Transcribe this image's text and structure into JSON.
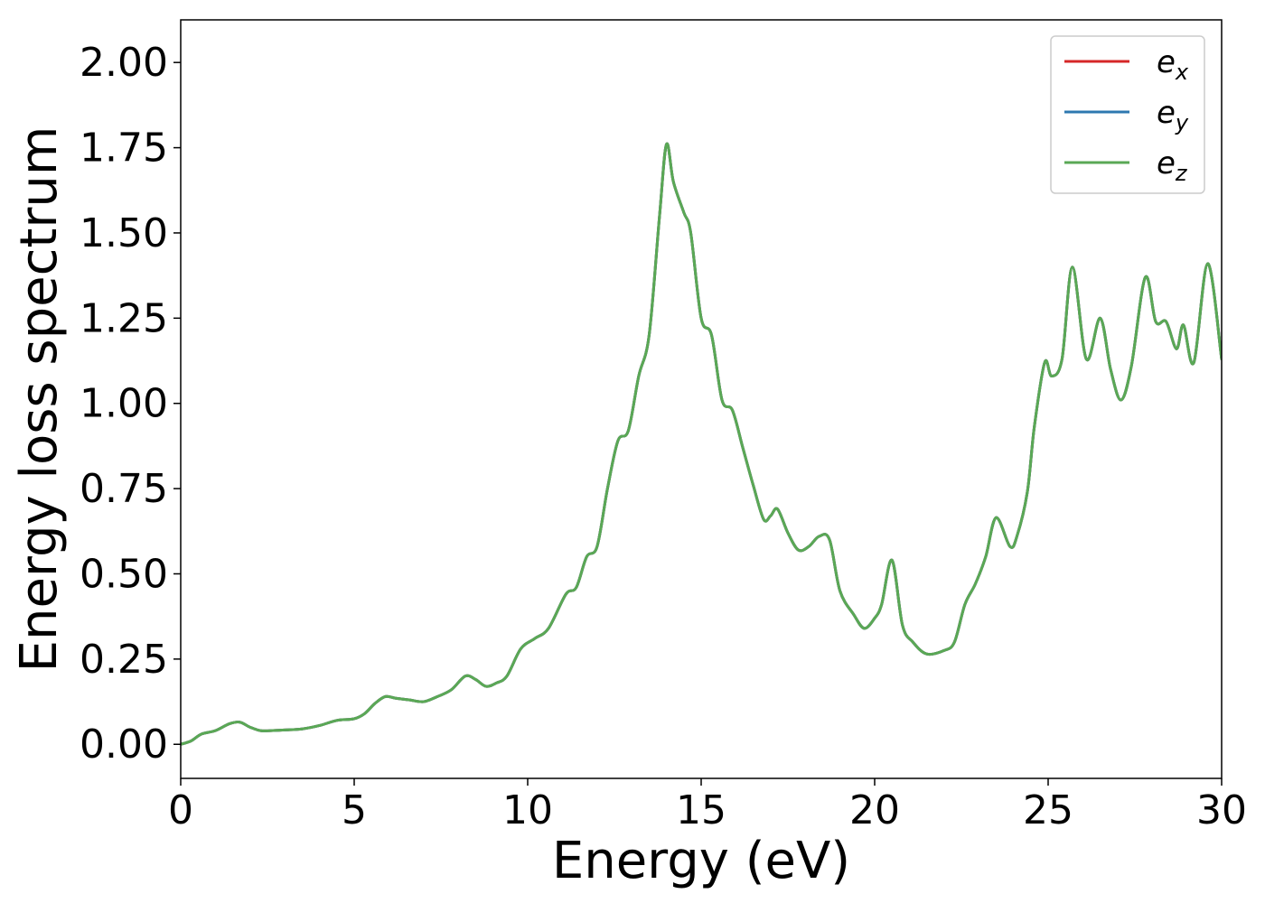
{
  "chart_data": {
    "type": "line",
    "title": "",
    "xlabel": "Energy (eV)",
    "ylabel": "Energy loss spectrum",
    "xlim": [
      0,
      30
    ],
    "ylim": [
      -0.1,
      2.125
    ],
    "xticks": [
      0,
      5,
      10,
      15,
      20,
      25,
      30
    ],
    "xtick_labels": [
      "0",
      "5",
      "10",
      "15",
      "20",
      "25",
      "30"
    ],
    "yticks": [
      0,
      0.25,
      0.5,
      0.75,
      1.0,
      1.25,
      1.5,
      1.75,
      2.0
    ],
    "ytick_labels": [
      "0.00",
      "0.25",
      "0.50",
      "0.75",
      "1.00",
      "1.25",
      "1.50",
      "1.75",
      "2.00"
    ],
    "grid": false,
    "legend_position": "top-right",
    "series": [
      {
        "name": "e_x",
        "label_base": "e",
        "label_sub": "x",
        "color": "#d62728",
        "x": [
          0,
          0.3,
          0.6,
          1.0,
          1.4,
          1.7,
          2.0,
          2.3,
          2.6,
          3.0,
          3.5,
          4.0,
          4.5,
          5.0,
          5.3,
          5.6,
          5.9,
          6.2,
          6.6,
          7.0,
          7.4,
          7.8,
          8.2,
          8.5,
          8.8,
          9.1,
          9.4,
          9.8,
          10.2,
          10.6,
          11.1,
          11.4,
          11.7,
          12.0,
          12.3,
          12.6,
          12.9,
          13.2,
          13.5,
          13.8,
          14.0,
          14.2,
          14.5,
          14.7,
          15.0,
          15.3,
          15.6,
          15.9,
          16.2,
          16.5,
          16.8,
          17.0,
          17.2,
          17.5,
          17.8,
          18.1,
          18.4,
          18.7,
          19.0,
          19.4,
          19.7,
          20.0,
          20.2,
          20.5,
          20.8,
          21.1,
          21.5,
          22.0,
          22.3,
          22.6,
          22.9,
          23.2,
          23.5,
          23.9,
          24.1,
          24.4,
          24.6,
          24.9,
          25.1,
          25.4,
          25.7,
          26.1,
          26.5,
          26.8,
          27.1,
          27.4,
          27.8,
          28.1,
          28.4,
          28.7,
          28.9,
          29.2,
          29.6,
          30.0
        ],
        "y": [
          0.0,
          0.01,
          0.03,
          0.04,
          0.06,
          0.065,
          0.05,
          0.04,
          0.04,
          0.042,
          0.045,
          0.055,
          0.07,
          0.075,
          0.09,
          0.12,
          0.14,
          0.135,
          0.13,
          0.125,
          0.14,
          0.16,
          0.2,
          0.19,
          0.17,
          0.18,
          0.2,
          0.28,
          0.31,
          0.34,
          0.44,
          0.46,
          0.55,
          0.58,
          0.75,
          0.89,
          0.92,
          1.08,
          1.2,
          1.55,
          1.76,
          1.65,
          1.56,
          1.5,
          1.25,
          1.2,
          1.01,
          0.98,
          0.87,
          0.76,
          0.66,
          0.67,
          0.69,
          0.62,
          0.57,
          0.58,
          0.61,
          0.6,
          0.45,
          0.38,
          0.34,
          0.37,
          0.41,
          0.54,
          0.35,
          0.3,
          0.265,
          0.275,
          0.3,
          0.41,
          0.47,
          0.55,
          0.665,
          0.58,
          0.61,
          0.74,
          0.93,
          1.12,
          1.08,
          1.13,
          1.4,
          1.13,
          1.25,
          1.1,
          1.01,
          1.11,
          1.37,
          1.24,
          1.24,
          1.16,
          1.23,
          1.12,
          1.41,
          1.13
        ]
      },
      {
        "name": "e_y",
        "label_base": "e",
        "label_sub": "y",
        "color": "#2e78b0",
        "x": [
          0,
          0.3,
          0.6,
          1.0,
          1.4,
          1.7,
          2.0,
          2.3,
          2.6,
          3.0,
          3.5,
          4.0,
          4.5,
          5.0,
          5.3,
          5.6,
          5.9,
          6.2,
          6.6,
          7.0,
          7.4,
          7.8,
          8.2,
          8.5,
          8.8,
          9.1,
          9.4,
          9.8,
          10.2,
          10.6,
          11.1,
          11.4,
          11.7,
          12.0,
          12.3,
          12.6,
          12.9,
          13.2,
          13.5,
          13.8,
          14.0,
          14.2,
          14.5,
          14.7,
          15.0,
          15.3,
          15.6,
          15.9,
          16.2,
          16.5,
          16.8,
          17.0,
          17.2,
          17.5,
          17.8,
          18.1,
          18.4,
          18.7,
          19.0,
          19.4,
          19.7,
          20.0,
          20.2,
          20.5,
          20.8,
          21.1,
          21.5,
          22.0,
          22.3,
          22.6,
          22.9,
          23.2,
          23.5,
          23.9,
          24.1,
          24.4,
          24.6,
          24.9,
          25.1,
          25.4,
          25.7,
          26.1,
          26.5,
          26.8,
          27.1,
          27.4,
          27.8,
          28.1,
          28.4,
          28.7,
          28.9,
          29.2,
          29.6,
          30.0
        ],
        "y": [
          0.0,
          0.01,
          0.03,
          0.04,
          0.06,
          0.065,
          0.05,
          0.04,
          0.04,
          0.042,
          0.045,
          0.055,
          0.07,
          0.075,
          0.09,
          0.12,
          0.14,
          0.135,
          0.13,
          0.125,
          0.14,
          0.16,
          0.2,
          0.19,
          0.17,
          0.18,
          0.2,
          0.28,
          0.31,
          0.34,
          0.44,
          0.46,
          0.55,
          0.58,
          0.75,
          0.89,
          0.92,
          1.08,
          1.2,
          1.55,
          1.76,
          1.65,
          1.56,
          1.5,
          1.25,
          1.2,
          1.01,
          0.98,
          0.87,
          0.76,
          0.66,
          0.67,
          0.69,
          0.62,
          0.57,
          0.58,
          0.61,
          0.6,
          0.45,
          0.38,
          0.34,
          0.37,
          0.41,
          0.54,
          0.35,
          0.3,
          0.265,
          0.275,
          0.3,
          0.41,
          0.47,
          0.55,
          0.665,
          0.58,
          0.61,
          0.74,
          0.93,
          1.12,
          1.08,
          1.13,
          1.4,
          1.13,
          1.25,
          1.1,
          1.01,
          1.11,
          1.37,
          1.24,
          1.24,
          1.16,
          1.23,
          1.12,
          1.41,
          1.13
        ]
      },
      {
        "name": "e_z",
        "label_base": "e",
        "label_sub": "z",
        "color": "#5aa855",
        "x": [
          0,
          0.3,
          0.6,
          1.0,
          1.4,
          1.7,
          2.0,
          2.3,
          2.6,
          3.0,
          3.5,
          4.0,
          4.5,
          5.0,
          5.3,
          5.6,
          5.9,
          6.2,
          6.6,
          7.0,
          7.4,
          7.8,
          8.2,
          8.5,
          8.8,
          9.1,
          9.4,
          9.8,
          10.2,
          10.6,
          11.1,
          11.4,
          11.7,
          12.0,
          12.3,
          12.6,
          12.9,
          13.2,
          13.5,
          13.8,
          14.0,
          14.2,
          14.5,
          14.7,
          15.0,
          15.3,
          15.6,
          15.9,
          16.2,
          16.5,
          16.8,
          17.0,
          17.2,
          17.5,
          17.8,
          18.1,
          18.4,
          18.7,
          19.0,
          19.4,
          19.7,
          20.0,
          20.2,
          20.5,
          20.8,
          21.1,
          21.5,
          22.0,
          22.3,
          22.6,
          22.9,
          23.2,
          23.5,
          23.9,
          24.1,
          24.4,
          24.6,
          24.9,
          25.1,
          25.4,
          25.7,
          26.1,
          26.5,
          26.8,
          27.1,
          27.4,
          27.8,
          28.1,
          28.4,
          28.7,
          28.9,
          29.2,
          29.6,
          30.0
        ],
        "y": [
          0.0,
          0.01,
          0.03,
          0.04,
          0.06,
          0.065,
          0.05,
          0.04,
          0.04,
          0.042,
          0.045,
          0.055,
          0.07,
          0.075,
          0.09,
          0.12,
          0.14,
          0.135,
          0.13,
          0.125,
          0.14,
          0.16,
          0.2,
          0.19,
          0.17,
          0.18,
          0.2,
          0.28,
          0.31,
          0.34,
          0.44,
          0.46,
          0.55,
          0.58,
          0.75,
          0.89,
          0.92,
          1.08,
          1.2,
          1.55,
          1.76,
          1.65,
          1.56,
          1.5,
          1.25,
          1.2,
          1.01,
          0.98,
          0.87,
          0.76,
          0.66,
          0.67,
          0.69,
          0.62,
          0.57,
          0.58,
          0.61,
          0.6,
          0.45,
          0.38,
          0.34,
          0.37,
          0.41,
          0.54,
          0.35,
          0.3,
          0.265,
          0.275,
          0.3,
          0.41,
          0.47,
          0.55,
          0.665,
          0.58,
          0.61,
          0.74,
          0.93,
          1.12,
          1.08,
          1.13,
          1.4,
          1.13,
          1.25,
          1.1,
          1.01,
          1.11,
          1.37,
          1.24,
          1.24,
          1.16,
          1.23,
          1.12,
          1.41,
          1.13
        ]
      }
    ]
  }
}
